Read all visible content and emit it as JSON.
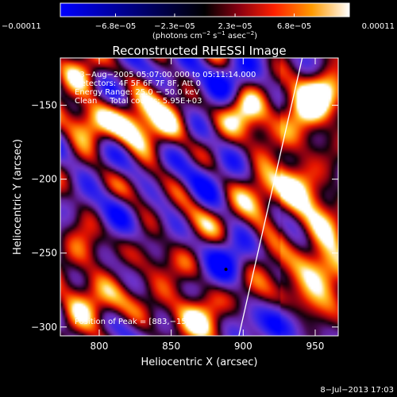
{
  "chart_data": {
    "type": "heatmap",
    "title": "Reconstructed RHESSI Image",
    "xlabel": "Heliocentric X (arcsec)",
    "ylabel": "Heliocentric Y (arcsec)",
    "xlim": [
      773,
      966
    ],
    "ylim": [
      -306,
      -118
    ],
    "xticks": [
      800,
      850,
      900,
      950
    ],
    "yticks": [
      -150,
      -200,
      -250,
      -300
    ],
    "xtick_labels": [
      "800",
      "850",
      "900",
      "950"
    ],
    "ytick_labels": [
      "−150",
      "−200",
      "−250",
      "−300"
    ],
    "colorbar": {
      "range": [
        -0.00011,
        0.00011
      ],
      "tick_values": [
        -0.00011,
        -6.8e-05,
        -2.3e-05,
        2.3e-05,
        6.8e-05,
        0.00011
      ],
      "tick_labels": [
        "−0.00011",
        "−6.8e−05",
        "−2.3e−05",
        "2.3e−05",
        "6.8e−05",
        "0.00011"
      ],
      "units_main": "(photons cm",
      "units_exp1": "−2",
      "units_mid": " s",
      "units_exp2": "−1",
      "units_end": " asec",
      "units_exp3": "−2",
      "units_close": ")"
    },
    "annotations": {
      "time_range": "23−Aug−2005 05:07:00.000 to 05:11:14.000",
      "detectors": "Detectors: 4F 5F 6F 7F 8F, Att 0",
      "energy_range": "Energy Range: 25.0 − 50.0 keV",
      "clean_counts": "Clean     Total counts: 5.95E+03",
      "peak": "Position of Peak = [883,−155]"
    },
    "peak_position": [
      883,
      -155
    ],
    "limb_line": [
      [
        897,
        -306
      ],
      [
        941,
        -118
      ]
    ],
    "hot_spots": [
      {
        "x": 787,
        "y": -132,
        "v": 0.95
      },
      {
        "x": 793,
        "y": -162,
        "v": 0.85
      },
      {
        "x": 822,
        "y": -162,
        "v": 0.9
      },
      {
        "x": 833,
        "y": -145,
        "v": 0.8
      },
      {
        "x": 850,
        "y": -165,
        "v": 0.8
      },
      {
        "x": 832,
        "y": -200,
        "v": 0.55
      },
      {
        "x": 900,
        "y": -150,
        "v": 0.85
      },
      {
        "x": 913,
        "y": -178,
        "v": 0.7
      },
      {
        "x": 913,
        "y": -215,
        "v": 0.7
      },
      {
        "x": 915,
        "y": -258,
        "v": 0.6
      },
      {
        "x": 943,
        "y": -153,
        "v": 1.0
      },
      {
        "x": 957,
        "y": -140,
        "v": 0.9
      },
      {
        "x": 937,
        "y": -200,
        "v": 0.95
      },
      {
        "x": 953,
        "y": -232,
        "v": 0.95
      },
      {
        "x": 960,
        "y": -262,
        "v": 0.9
      },
      {
        "x": 945,
        "y": -280,
        "v": 0.6
      },
      {
        "x": 857,
        "y": -300,
        "v": 0.85
      },
      {
        "x": 873,
        "y": -287,
        "v": 0.8
      },
      {
        "x": 790,
        "y": -250,
        "v": 0.75
      },
      {
        "x": 785,
        "y": -290,
        "v": 0.7
      },
      {
        "x": 835,
        "y": -255,
        "v": 0.55
      },
      {
        "x": 862,
        "y": -232,
        "v": 0.6
      },
      {
        "x": 805,
        "y": -285,
        "v": 0.55
      }
    ],
    "cold_spots": [
      {
        "x": 888,
        "y": -261,
        "v": -0.9
      },
      {
        "x": 812,
        "y": -222,
        "v": -0.6
      },
      {
        "x": 845,
        "y": -215,
        "v": -0.5
      },
      {
        "x": 870,
        "y": -195,
        "v": -0.5
      },
      {
        "x": 890,
        "y": -130,
        "v": -0.55
      },
      {
        "x": 815,
        "y": -140,
        "v": -0.5
      },
      {
        "x": 925,
        "y": -297,
        "v": -0.55
      },
      {
        "x": 863,
        "y": -145,
        "v": -0.4
      }
    ]
  },
  "footer": {
    "date": "8−Jul−2013 17:03"
  }
}
